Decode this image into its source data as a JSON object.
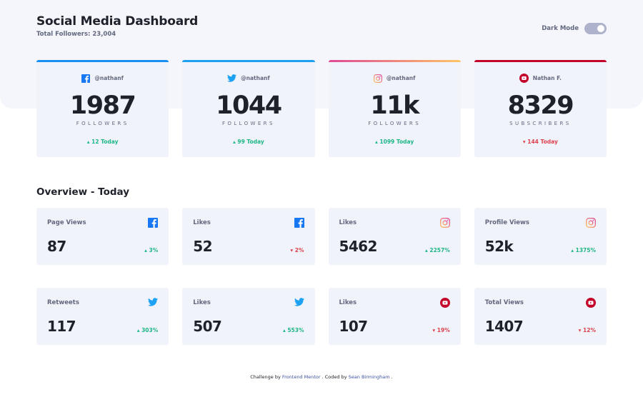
{
  "header": {
    "title": "Social Media Dashboard",
    "subtitle": "Total Followers: 23,004",
    "dark_mode_label": "Dark Mode"
  },
  "followers": [
    {
      "platform": "facebook",
      "icon": "facebook-icon",
      "handle": "@nathanf",
      "count": "1987",
      "label": "FOLLOWERS",
      "change": "12 Today",
      "direction": "up",
      "accent": "#198ff5"
    },
    {
      "platform": "twitter",
      "icon": "twitter-icon",
      "handle": "@nathanf",
      "count": "1044",
      "label": "FOLLOWERS",
      "change": "99 Today",
      "direction": "up",
      "accent": "#1ca0f2"
    },
    {
      "platform": "instagram",
      "icon": "instagram-icon",
      "handle": "@nathanf",
      "count": "11k",
      "label": "FOLLOWERS",
      "change": "1099 Today",
      "direction": "up",
      "accent": "#df4996"
    },
    {
      "platform": "youtube",
      "icon": "youtube-icon",
      "handle": "Nathan F.",
      "count": "8329",
      "label": "SUBSCRIBERS",
      "change": "144 Today",
      "direction": "down",
      "accent": "#c4032a"
    }
  ],
  "overview": {
    "title": "Overview - Today",
    "cards": [
      {
        "label": "Page Views",
        "icon": "facebook-icon",
        "value": "87",
        "change": "3%",
        "direction": "up"
      },
      {
        "label": "Likes",
        "icon": "facebook-icon",
        "value": "52",
        "change": "2%",
        "direction": "down"
      },
      {
        "label": "Likes",
        "icon": "instagram-icon",
        "value": "5462",
        "change": "2257%",
        "direction": "up"
      },
      {
        "label": "Profile Views",
        "icon": "instagram-icon",
        "value": "52k",
        "change": "1375%",
        "direction": "up"
      },
      {
        "label": "Retweets",
        "icon": "twitter-icon",
        "value": "117",
        "change": "303%",
        "direction": "up"
      },
      {
        "label": "Likes",
        "icon": "twitter-icon",
        "value": "507",
        "change": "553%",
        "direction": "up"
      },
      {
        "label": "Likes",
        "icon": "youtube-icon",
        "value": "107",
        "change": "19%",
        "direction": "down"
      },
      {
        "label": "Total Views",
        "icon": "youtube-icon",
        "value": "1407",
        "change": "12%",
        "direction": "down"
      }
    ]
  },
  "footer": {
    "prefix": "Challenge by",
    "link1": "Frontend Mentor",
    "middle": ". Coded by",
    "link2": "Sean Birmingham",
    "suffix": "."
  },
  "colors": {
    "up": "#1eb589",
    "down": "#dc414c",
    "facebook": "#198ff5",
    "twitter": "#1ca0f2",
    "youtube": "#c4032a",
    "instagram_start": "#fdc468",
    "instagram_end": "#df4996"
  }
}
